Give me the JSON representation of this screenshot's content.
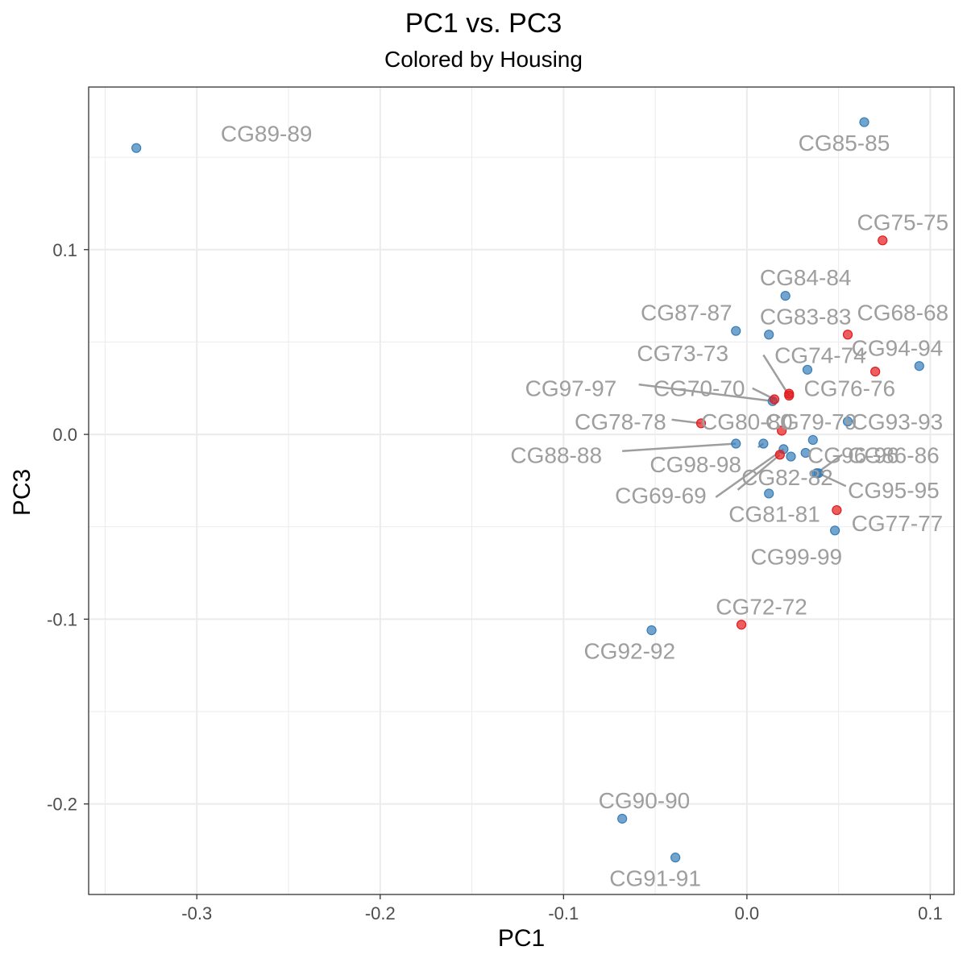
{
  "chart_data": {
    "type": "scatter",
    "title": "PC1 vs. PC3",
    "subtitle": "Colored by Housing",
    "xlabel": "PC1",
    "ylabel": "PC3",
    "xlim": [
      -0.359,
      0.113
    ],
    "ylim": [
      -0.249,
      0.188
    ],
    "x_ticks": [
      -0.3,
      -0.2,
      -0.1,
      0.0,
      0.1
    ],
    "x_tick_labels": [
      "-0.3",
      "-0.2",
      "-0.1",
      "0.0",
      "0.1"
    ],
    "y_ticks": [
      -0.2,
      -0.1,
      0.0,
      0.1
    ],
    "y_tick_labels": [
      "-0.2",
      "-0.1",
      "0.0",
      "0.1"
    ],
    "grid": true,
    "legend": "none",
    "colors": {
      "group_a": "#e41a1c",
      "group_b": "#377eb8"
    },
    "points": [
      {
        "label": "CG89-89",
        "x": -0.333,
        "y": 0.155,
        "group": "group_b",
        "lx": -0.262,
        "ly": 0.163
      },
      {
        "label": "CG85-85",
        "x": 0.064,
        "y": 0.169,
        "group": "group_b",
        "lx": 0.053,
        "ly": 0.158
      },
      {
        "label": "CG75-75",
        "x": 0.074,
        "y": 0.105,
        "group": "group_a",
        "lx": 0.085,
        "ly": 0.115
      },
      {
        "label": "CG84-84",
        "x": 0.021,
        "y": 0.075,
        "group": "group_b",
        "lx": 0.032,
        "ly": 0.085
      },
      {
        "label": "CG87-87",
        "x": -0.006,
        "y": 0.056,
        "group": "group_b",
        "lx": -0.033,
        "ly": 0.066
      },
      {
        "label": "CG83-83",
        "x": 0.012,
        "y": 0.054,
        "group": "group_b",
        "lx": 0.032,
        "ly": 0.064
      },
      {
        "label": "CG68-68",
        "x": 0.055,
        "y": 0.054,
        "group": "group_a",
        "lx": 0.085,
        "ly": 0.066
      },
      {
        "label": "CG94-94",
        "x": 0.094,
        "y": 0.037,
        "group": "group_b",
        "lx": 0.082,
        "ly": 0.047
      },
      {
        "label": "CG73-73",
        "x": 0.023,
        "y": 0.021,
        "group": "group_a",
        "lx": -0.035,
        "ly": 0.044,
        "line": [
          0.009,
          0.043
        ]
      },
      {
        "label": "CG74-74",
        "x": 0.033,
        "y": 0.035,
        "group": "group_b",
        "lx": 0.04,
        "ly": 0.043
      },
      {
        "label": "CG94-94",
        "x": 0.07,
        "y": 0.034,
        "group": "group_a",
        "lx": 0.0,
        "ly": 0.0,
        "hidelabel": true
      },
      {
        "label": "CG97-97",
        "x": 0.014,
        "y": 0.018,
        "group": "group_b",
        "lx": -0.096,
        "ly": 0.025,
        "line": [
          -0.059,
          0.027
        ]
      },
      {
        "label": "CG70-70",
        "x": 0.015,
        "y": 0.019,
        "group": "group_a",
        "lx": -0.026,
        "ly": 0.025,
        "line": [
          0.003,
          0.025
        ]
      },
      {
        "label": "CG76-76",
        "x": 0.023,
        "y": 0.022,
        "group": "group_a",
        "lx": 0.056,
        "ly": 0.025
      },
      {
        "label": "CG78-78",
        "x": -0.025,
        "y": 0.006,
        "group": "group_a",
        "lx": -0.069,
        "ly": 0.007,
        "line": [
          -0.041,
          0.008
        ]
      },
      {
        "label": "CG80-80",
        "x": 0.019,
        "y": 0.002,
        "group": "group_a",
        "lx": 0.0,
        "ly": 0.007
      },
      {
        "label": "CG79-79",
        "x": 0.036,
        "y": -0.003,
        "group": "group_b",
        "lx": 0.035,
        "ly": 0.007
      },
      {
        "label": "CG93-93",
        "x": 0.055,
        "y": 0.007,
        "group": "group_b",
        "lx": 0.082,
        "ly": 0.007
      },
      {
        "label": "CG88-88",
        "x": -0.006,
        "y": -0.005,
        "group": "group_b",
        "lx": -0.104,
        "ly": -0.011,
        "line": [
          -0.068,
          -0.009
        ]
      },
      {
        "label": "CG98-98",
        "x": 0.009,
        "y": -0.005,
        "group": "group_b",
        "lx": -0.028,
        "ly": -0.016,
        "line": [
          0.006,
          -0.007
        ]
      },
      {
        "label": "CG96-96",
        "x": 0.032,
        "y": -0.01,
        "group": "group_b",
        "lx": 0.058,
        "ly": -0.011
      },
      {
        "label": "CG86-86",
        "x": 0.038,
        "y": -0.021,
        "group": "group_b",
        "lx": 0.08,
        "ly": -0.011,
        "line": [
          0.052,
          -0.011
        ]
      },
      {
        "label": "CG69-69",
        "x": 0.02,
        "y": -0.008,
        "group": "group_b",
        "lx": -0.047,
        "ly": -0.033,
        "line": [
          -0.017,
          -0.034
        ]
      },
      {
        "label": "CG82-82",
        "x": 0.024,
        "y": -0.012,
        "group": "group_b",
        "lx": 0.022,
        "ly": -0.023
      },
      {
        "label": "CG95-95",
        "x": 0.039,
        "y": -0.021,
        "group": "group_b",
        "lx": 0.08,
        "ly": -0.03,
        "line": [
          0.054,
          -0.028
        ]
      },
      {
        "label": "CG69-69",
        "x": 0.018,
        "y": -0.011,
        "group": "group_a",
        "lx": 0.0,
        "ly": 0.0,
        "hidelabel": true,
        "line": [
          -0.005,
          -0.03
        ]
      },
      {
        "label": "CG81-81",
        "x": 0.012,
        "y": -0.032,
        "group": "group_b",
        "lx": 0.015,
        "ly": -0.043
      },
      {
        "label": "CG77-77",
        "x": 0.049,
        "y": -0.041,
        "group": "group_a",
        "lx": 0.082,
        "ly": -0.048
      },
      {
        "label": "CG99-99",
        "x": 0.048,
        "y": -0.052,
        "group": "group_b",
        "lx": 0.027,
        "ly": -0.066
      },
      {
        "label": "CG72-72",
        "x": -0.003,
        "y": -0.103,
        "group": "group_a",
        "lx": 0.008,
        "ly": -0.093
      },
      {
        "label": "CG92-92",
        "x": -0.052,
        "y": -0.106,
        "group": "group_b",
        "lx": -0.064,
        "ly": -0.117
      },
      {
        "label": "CG90-90",
        "x": -0.068,
        "y": -0.208,
        "group": "group_b",
        "lx": -0.056,
        "ly": -0.198
      },
      {
        "label": "CG91-91",
        "x": -0.039,
        "y": -0.229,
        "group": "group_b",
        "lx": -0.05,
        "ly": -0.24
      }
    ]
  }
}
